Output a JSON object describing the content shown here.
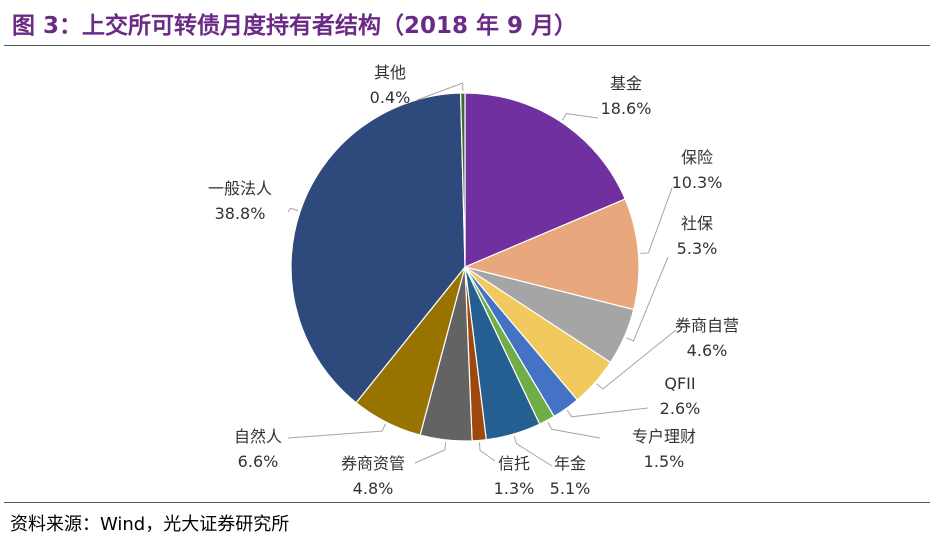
{
  "figure": {
    "title": "图 3：上交所可转债月度持有者结构（2018 年 9 月）",
    "source": "资料来源：Wind，光大证券研究所"
  },
  "colors": {
    "title": "#6b2a86"
  },
  "chart_data": {
    "type": "pie",
    "title": "",
    "categories": [
      "基金",
      "保险",
      "社保",
      "券商自营",
      "QFII",
      "专户理财",
      "年金",
      "信托",
      "券商资管",
      "自然人",
      "一般法人",
      "其他"
    ],
    "values": [
      18.6,
      10.3,
      5.3,
      4.6,
      2.6,
      1.5,
      5.1,
      1.3,
      4.8,
      6.6,
      38.8,
      0.4
    ],
    "value_labels": [
      "18.6%",
      "10.3%",
      "5.3%",
      "4.6%",
      "2.6%",
      "1.5%",
      "5.1%",
      "1.3%",
      "4.8%",
      "6.6%",
      "38.8%",
      "0.4%"
    ],
    "colors": [
      "#7030a0",
      "#e8a77c",
      "#a5a5a5",
      "#f2c95e",
      "#4472c4",
      "#70ad47",
      "#255e91",
      "#9e480e",
      "#636363",
      "#997300",
      "#2e4a7d",
      "#43682b"
    ],
    "start": "12 o'clock",
    "direction": "clockwise",
    "legend": "none"
  }
}
